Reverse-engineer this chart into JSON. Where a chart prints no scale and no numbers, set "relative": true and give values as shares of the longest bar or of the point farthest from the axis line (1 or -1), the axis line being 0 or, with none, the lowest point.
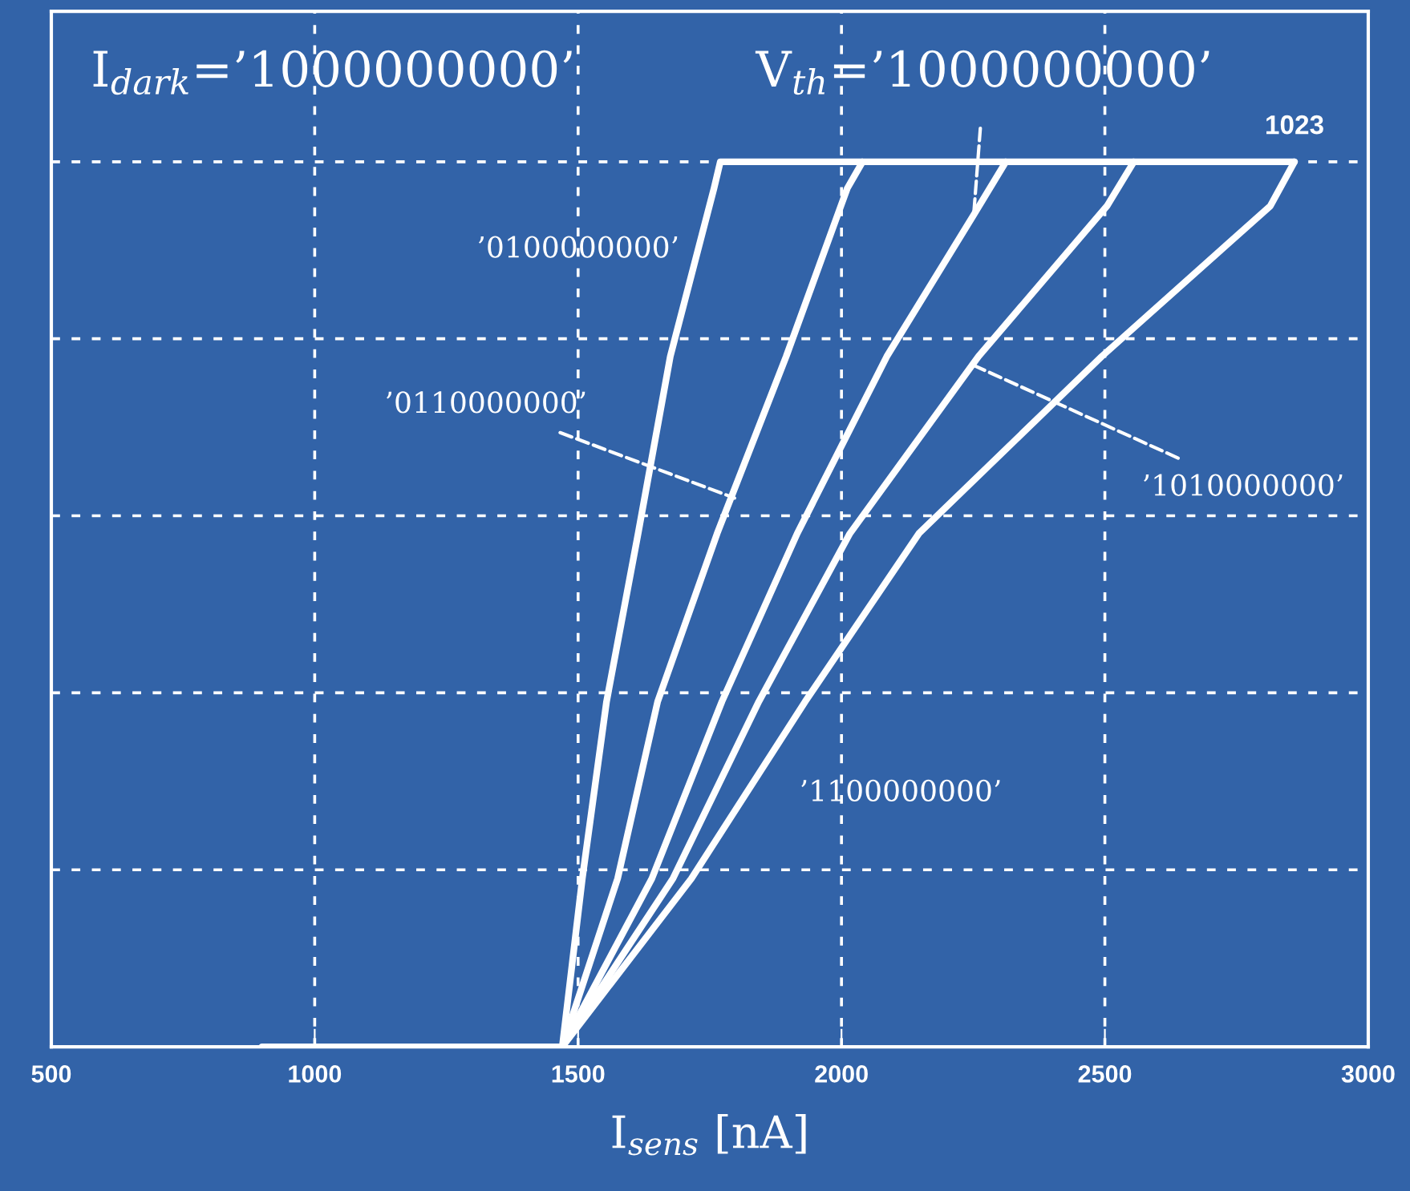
{
  "chart_data": {
    "type": "line",
    "xlabel": "I$_{sens}$ [nA]",
    "relative": true,
    "xlim": [
      500,
      3000
    ],
    "xticks": [
      500,
      1000,
      1500,
      2000,
      2500,
      3000
    ],
    "grid": true,
    "marker": "none",
    "line_style": "solid",
    "series": [
      {
        "color": "#ffffff",
        "x": [
          900,
          1470,
          1508,
          1554,
          1614,
          1675,
          1758,
          1770,
          2860
        ],
        "values": [
          0,
          0,
          0.19,
          0.39,
          0.58,
          0.78,
          0.97,
          1,
          1
        ]
      },
      {
        "color": "#ffffff",
        "x": [
          1470,
          1575,
          1651,
          1764,
          1895,
          2011,
          2040
        ],
        "values": [
          0,
          0.19,
          0.39,
          0.58,
          0.78,
          0.97,
          1
        ]
      },
      {
        "color": "#ffffff",
        "x": [
          1470,
          1640,
          1773,
          1916,
          2086,
          2251,
          2312
        ],
        "values": [
          0,
          0.19,
          0.39,
          0.58,
          0.78,
          0.94,
          1
        ]
      },
      {
        "color": "#ffffff",
        "x": [
          1470,
          1680,
          1843,
          2016,
          2260,
          2504,
          2555
        ],
        "values": [
          0,
          0.19,
          0.39,
          0.58,
          0.78,
          0.95,
          1
        ]
      },
      {
        "color": "#ffffff",
        "x": [
          1470,
          1715,
          1931,
          2147,
          2494,
          2814,
          2860
        ],
        "values": [
          0,
          0.19,
          0.39,
          0.58,
          0.78,
          0.95,
          1
        ]
      }
    ],
    "annotations": [
      "I$_{dark}$=’1000000000’",
      {
        "text": "V$_{th}$=’1000000000’",
        "x": 2251,
        "y": 0.94
      },
      "’0100000000’",
      {
        "text": "’0110000000’",
        "x": 1797,
        "y": 0.62
      },
      {
        "text": "’1010000000’",
        "x": 2251,
        "y": 0.77
      },
      "’1100000000’",
      {
        "text": "1023",
        "x": 2860,
        "y": 1
      }
    ]
  }
}
